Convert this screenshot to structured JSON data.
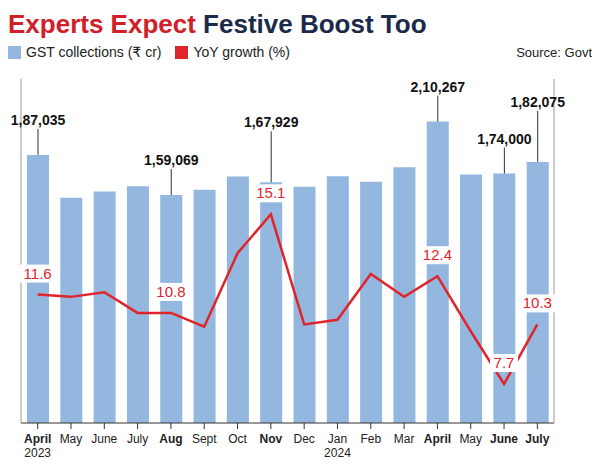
{
  "chart_data": {
    "type": "bar",
    "title": "Experts Expect Festive Boost Too",
    "annotations": [
      "Source: Govt"
    ],
    "categories": [
      "April 2023",
      "May",
      "June",
      "July",
      "Aug",
      "Sept",
      "Oct",
      "Nov",
      "Dec",
      "Jan 2024",
      "Feb",
      "Mar",
      "April",
      "May",
      "June",
      "July"
    ],
    "series": [
      {
        "name": "GST collections (₹ cr)",
        "type": "bar",
        "color": "#93b7de",
        "values": [
          187035,
          157090,
          161497,
          165105,
          159069,
          162712,
          172003,
          167929,
          164882,
          172129,
          168337,
          178484,
          210267,
          173372,
          174000,
          182075
        ],
        "value_labels": [
          "1,87,035",
          null,
          null,
          null,
          "1,59,069",
          null,
          null,
          "1,67,929",
          null,
          null,
          null,
          null,
          "2,10,267",
          null,
          "1,74,000",
          "1,82,075"
        ]
      },
      {
        "name": "YoY growth (%)",
        "type": "line",
        "axis": "y2",
        "color": "#e0242b",
        "marker": "none",
        "values": [
          11.6,
          11.5,
          11.7,
          10.8,
          10.8,
          10.2,
          13.4,
          15.1,
          10.3,
          10.5,
          12.5,
          11.5,
          12.4,
          10.0,
          7.7,
          10.3
        ],
        "value_labels": [
          "11.6",
          null,
          null,
          null,
          "10.8",
          null,
          null,
          "15.1",
          null,
          null,
          null,
          null,
          "12.4",
          null,
          "7.7",
          "10.3"
        ]
      }
    ],
    "ylim": [
      0,
      240000
    ],
    "yticks": [],
    "y2lim": [
      6,
      21
    ],
    "y2ticks": [],
    "tick_labels": "x",
    "grid": false,
    "data_labels": true
  }
}
